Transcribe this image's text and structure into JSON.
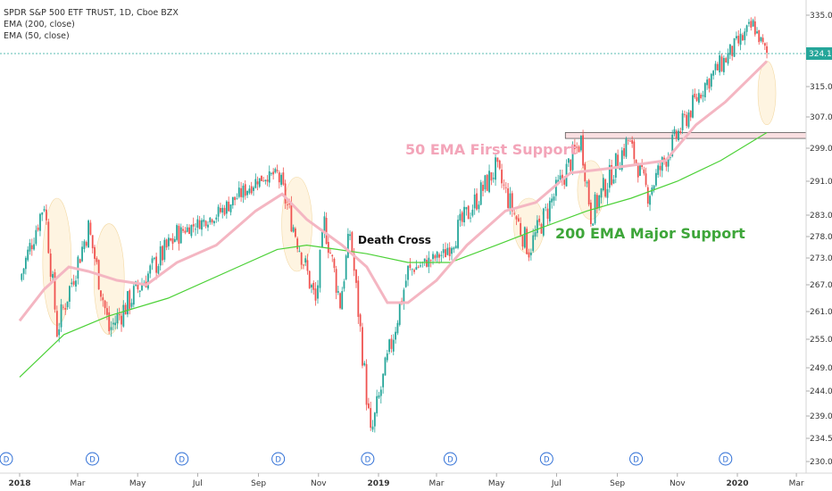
{
  "legend": {
    "title": "SPDR S&P 500 ETF TRUST, 1D, Cboe BZX",
    "ema200": "EMA (200, close)",
    "ema50": "EMA (50, close)"
  },
  "annotations": {
    "death_cross": "Death Cross",
    "ema50_support": "50 EMA First Support",
    "ema200_support": "200 EMA Major Support"
  },
  "colors": {
    "up": "#26a69a",
    "down": "#ef5350",
    "ema50": "#f4b6c2",
    "ema200": "#4cd137",
    "highlight": "#fdebc8",
    "support_box": "#f8d7da",
    "price_line": "#26a69a",
    "price_tag": "#26a69a",
    "ema50_label": "#f3a5b9",
    "ema200_label": "#3ea63a"
  },
  "chart_data": {
    "type": "candlestick",
    "y_ticks": [
      "335.00",
      "324.12",
      "315.00",
      "307.00",
      "299.00",
      "291.00",
      "283.00",
      "278.00",
      "273.00",
      "267.00",
      "261.00",
      "255.00",
      "249.00",
      "244.00",
      "239.00",
      "234.50",
      "230.00"
    ],
    "x_ticks": [
      "2018",
      "Mar",
      "May",
      "Jul",
      "Sep",
      "Nov",
      "2019",
      "Mar",
      "May",
      "Jul",
      "Sep",
      "Nov",
      "2020",
      "Mar"
    ],
    "last_price": "324.12",
    "dividend_marker": "D",
    "dividend_count": 9,
    "key_prices": [
      {
        "x": "2018-01-01",
        "y": 268
      },
      {
        "x": "2018-01-26",
        "y": 286
      },
      {
        "x": "2018-02-08",
        "y": 257
      },
      {
        "x": "2018-03-12",
        "y": 280
      },
      {
        "x": "2018-04-02",
        "y": 257
      },
      {
        "x": "2018-06-12",
        "y": 279
      },
      {
        "x": "2018-07-20",
        "y": 283
      },
      {
        "x": "2018-08-29",
        "y": 291
      },
      {
        "x": "2018-09-20",
        "y": 293
      },
      {
        "x": "2018-10-29",
        "y": 263
      },
      {
        "x": "2018-11-07",
        "y": 281
      },
      {
        "x": "2018-11-23",
        "y": 263
      },
      {
        "x": "2018-12-03",
        "y": 279
      },
      {
        "x": "2018-12-24",
        "y": 234.5
      },
      {
        "x": "2019-01-31",
        "y": 270
      },
      {
        "x": "2019-03-08",
        "y": 274
      },
      {
        "x": "2019-04-30",
        "y": 294
      },
      {
        "x": "2019-06-03",
        "y": 275
      },
      {
        "x": "2019-07-26",
        "y": 301
      },
      {
        "x": "2019-08-05",
        "y": 283
      },
      {
        "x": "2019-09-12",
        "y": 301
      },
      {
        "x": "2019-10-02",
        "y": 288
      },
      {
        "x": "2019-11-27",
        "y": 315
      },
      {
        "x": "2020-01-17",
        "y": 332
      },
      {
        "x": "2020-01-31",
        "y": 324.12
      }
    ],
    "ema50": [
      {
        "x": "2018-01-01",
        "y": 259
      },
      {
        "x": "2018-01-26",
        "y": 266
      },
      {
        "x": "2018-02-20",
        "y": 271
      },
      {
        "x": "2018-03-12",
        "y": 270
      },
      {
        "x": "2018-04-10",
        "y": 268
      },
      {
        "x": "2018-05-10",
        "y": 267
      },
      {
        "x": "2018-06-10",
        "y": 272
      },
      {
        "x": "2018-07-20",
        "y": 276
      },
      {
        "x": "2018-08-29",
        "y": 284
      },
      {
        "x": "2018-09-25",
        "y": 288
      },
      {
        "x": "2018-10-20",
        "y": 282
      },
      {
        "x": "2018-11-25",
        "y": 276
      },
      {
        "x": "2018-12-20",
        "y": 271
      },
      {
        "x": "2019-01-10",
        "y": 263
      },
      {
        "x": "2019-01-31",
        "y": 263
      },
      {
        "x": "2019-03-01",
        "y": 268
      },
      {
        "x": "2019-04-01",
        "y": 276
      },
      {
        "x": "2019-05-10",
        "y": 284
      },
      {
        "x": "2019-06-10",
        "y": 286
      },
      {
        "x": "2019-07-15",
        "y": 293
      },
      {
        "x": "2019-08-20",
        "y": 294
      },
      {
        "x": "2019-09-20",
        "y": 295
      },
      {
        "x": "2019-10-20",
        "y": 296
      },
      {
        "x": "2019-11-20",
        "y": 305
      },
      {
        "x": "2019-12-20",
        "y": 311
      },
      {
        "x": "2020-01-31",
        "y": 322
      }
    ],
    "ema200": [
      {
        "x": "2018-01-01",
        "y": 247
      },
      {
        "x": "2018-02-15",
        "y": 256
      },
      {
        "x": "2018-04-01",
        "y": 260
      },
      {
        "x": "2018-06-01",
        "y": 264
      },
      {
        "x": "2018-08-01",
        "y": 270
      },
      {
        "x": "2018-09-20",
        "y": 275
      },
      {
        "x": "2018-10-20",
        "y": 276
      },
      {
        "x": "2018-11-20",
        "y": 275
      },
      {
        "x": "2018-12-20",
        "y": 274
      },
      {
        "x": "2019-01-31",
        "y": 272
      },
      {
        "x": "2019-03-15",
        "y": 272
      },
      {
        "x": "2019-05-01",
        "y": 276
      },
      {
        "x": "2019-06-15",
        "y": 280
      },
      {
        "x": "2019-08-01",
        "y": 284
      },
      {
        "x": "2019-09-15",
        "y": 287
      },
      {
        "x": "2019-11-01",
        "y": 291
      },
      {
        "x": "2019-12-15",
        "y": 296
      },
      {
        "x": "2020-01-31",
        "y": 303
      }
    ],
    "support_zone": {
      "from": "2019-07-10",
      "to": "2020-03-31",
      "low": 301.5,
      "high": 303
    }
  }
}
